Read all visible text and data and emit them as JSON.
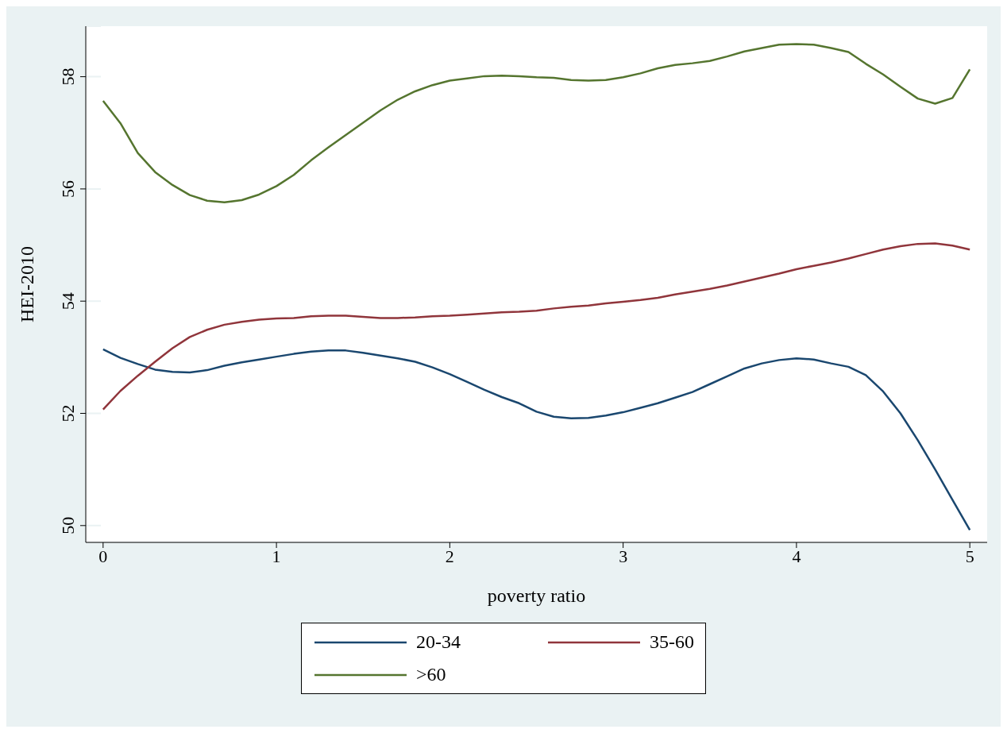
{
  "chart_data": {
    "type": "line",
    "xlabel": "poverty ratio",
    "ylabel": "HEI-2010",
    "x": [
      0,
      0.1,
      0.2,
      0.3,
      0.4,
      0.5,
      0.6,
      0.7,
      0.8,
      0.9,
      1,
      1.1,
      1.2,
      1.3,
      1.4,
      1.5,
      1.6,
      1.7,
      1.8,
      1.9,
      2,
      2.1,
      2.2,
      2.3,
      2.4,
      2.5,
      2.6,
      2.7,
      2.8,
      2.9,
      3,
      3.1,
      3.2,
      3.3,
      3.4,
      3.5,
      3.6,
      3.7,
      3.8,
      3.9,
      4,
      4.1,
      4.2,
      4.3,
      4.4,
      4.5,
      4.6,
      4.7,
      4.8,
      4.9,
      5
    ],
    "series": [
      {
        "name": "20-34",
        "color": "#1a476f",
        "values": [
          53.14,
          52.99,
          52.88,
          52.78,
          52.74,
          52.73,
          52.77,
          52.85,
          52.91,
          52.96,
          53.01,
          53.06,
          53.1,
          53.12,
          53.12,
          53.08,
          53.03,
          52.98,
          52.92,
          52.82,
          52.7,
          52.56,
          52.42,
          52.29,
          52.18,
          52.03,
          51.94,
          51.91,
          51.92,
          51.96,
          52.02,
          52.1,
          52.18,
          52.28,
          52.38,
          52.52,
          52.66,
          52.8,
          52.89,
          52.95,
          52.98,
          52.96,
          52.89,
          52.83,
          52.68,
          52.39,
          52,
          51.52,
          51,
          50.46,
          49.92
        ]
      },
      {
        "name": "35-60",
        "color": "#90353b",
        "values": [
          52.07,
          52.4,
          52.67,
          52.92,
          53.16,
          53.36,
          53.49,
          53.58,
          53.63,
          53.67,
          53.69,
          53.7,
          53.73,
          53.74,
          53.74,
          53.72,
          53.7,
          53.7,
          53.71,
          53.73,
          53.74,
          53.76,
          53.78,
          53.8,
          53.81,
          53.83,
          53.87,
          53.9,
          53.92,
          53.96,
          53.99,
          54.02,
          54.06,
          54.12,
          54.17,
          54.22,
          54.28,
          54.35,
          54.42,
          54.49,
          54.57,
          54.63,
          54.69,
          54.76,
          54.84,
          54.92,
          54.98,
          55.02,
          55.03,
          54.99,
          54.92
        ]
      },
      {
        "name": ">60",
        "color": "#55752f",
        "values": [
          57.57,
          57.17,
          56.64,
          56.3,
          56.07,
          55.89,
          55.79,
          55.76,
          55.8,
          55.9,
          56.05,
          56.25,
          56.51,
          56.74,
          56.96,
          57.18,
          57.4,
          57.59,
          57.74,
          57.85,
          57.93,
          57.97,
          58.01,
          58.02,
          58.01,
          57.99,
          57.98,
          57.94,
          57.93,
          57.94,
          57.99,
          58.06,
          58.15,
          58.21,
          58.24,
          58.28,
          58.36,
          58.45,
          58.51,
          58.57,
          58.58,
          58.57,
          58.51,
          58.44,
          58.23,
          58.04,
          57.82,
          57.61,
          57.52,
          57.62,
          58.13
        ]
      }
    ],
    "xlim": [
      -0.1,
      5.1
    ],
    "ylim": [
      49.7,
      58.9
    ],
    "xticks": [
      0,
      1,
      2,
      3,
      4,
      5
    ],
    "yticks": [
      50,
      52,
      54,
      56,
      58
    ],
    "grid": "y",
    "legend": "bottom",
    "marker": "none",
    "line_style": "solid"
  }
}
